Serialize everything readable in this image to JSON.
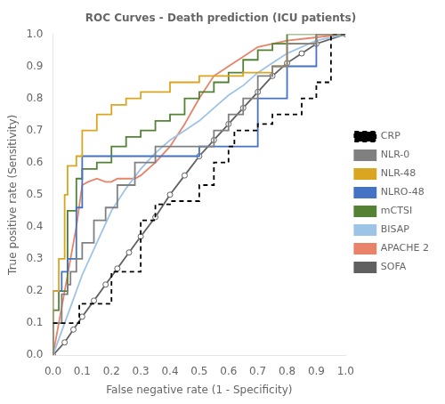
{
  "chart_data": {
    "type": "line",
    "title": "ROC Curves - Death prediction (ICU patients)",
    "xlabel": "False negative rate (1 - Specificity)",
    "ylabel": "True positive rate (Sensitivity)",
    "xlim": [
      0,
      1
    ],
    "ylim": [
      0,
      1
    ],
    "xticks": [
      {
        "value": 0,
        "label": "0.0"
      },
      0.1,
      0.2,
      0.3,
      0.4,
      0.5,
      0.6,
      0.7,
      0.8,
      0.9,
      {
        "value": 1.0,
        "label": "1.0"
      }
    ],
    "yticks": [
      {
        "value": 0,
        "label": "0.0"
      },
      0.1,
      0.2,
      0.3,
      0.4,
      0.5,
      0.6,
      0.7,
      0.8,
      0.9,
      {
        "value": 1.0,
        "label": "1.0"
      }
    ],
    "grid": false,
    "legend": "right",
    "series": [
      {
        "name": "CRP",
        "type": "step",
        "line_style": "dashed",
        "color": "#000000",
        "x": [
          0,
          0.03,
          0.06,
          0.09,
          0.1,
          0.2,
          0.22,
          0.3,
          0.35,
          0.4,
          0.45,
          0.5,
          0.53,
          0.55,
          0.6,
          0.62,
          0.65,
          0.7,
          0.75,
          0.8,
          0.85,
          0.9,
          0.95,
          1.0
        ],
        "values": [
          0.1,
          0.1,
          0.1,
          0.1,
          0.16,
          0.16,
          0.26,
          0.26,
          0.42,
          0.47,
          0.48,
          0.48,
          0.53,
          0.53,
          0.6,
          0.65,
          0.7,
          0.7,
          0.72,
          0.75,
          0.75,
          0.8,
          0.85,
          1.0
        ]
      },
      {
        "name": "NLR-0",
        "type": "step",
        "color": "#808080",
        "x": [
          0,
          0.03,
          0.05,
          0.06,
          0.08,
          0.1,
          0.14,
          0.18,
          0.22,
          0.28,
          0.35,
          0.4,
          0.48,
          0.55,
          0.6,
          0.65,
          0.7,
          0.75,
          0.8,
          0.9,
          1.0
        ],
        "values": [
          0,
          0.1,
          0.19,
          0.22,
          0.26,
          0.3,
          0.35,
          0.42,
          0.46,
          0.53,
          0.6,
          0.65,
          0.65,
          0.65,
          0.7,
          0.75,
          0.8,
          0.87,
          0.9,
          0.97,
          1.0
        ]
      },
      {
        "name": "NLR-48",
        "type": "step",
        "color": "#DAA520",
        "x": [
          0,
          0.02,
          0.04,
          0.05,
          0.08,
          0.1,
          0.15,
          0.2,
          0.25,
          0.3,
          0.4,
          0.5,
          0.6,
          0.65,
          0.7,
          0.75,
          0.8,
          0.9,
          1.0
        ],
        "values": [
          0,
          0.2,
          0.3,
          0.5,
          0.59,
          0.62,
          0.7,
          0.75,
          0.78,
          0.8,
          0.82,
          0.85,
          0.87,
          0.87,
          0.88,
          0.88,
          0.9,
          0.97,
          1.0
        ]
      },
      {
        "name": "NLRO-48",
        "type": "step",
        "color": "#4472C4",
        "x": [
          0,
          0.03,
          0.05,
          0.08,
          0.1,
          0.2,
          0.3,
          0.4,
          0.5,
          0.55,
          0.6,
          0.65,
          0.7,
          0.8,
          0.9,
          1.0
        ],
        "values": [
          0,
          0.2,
          0.26,
          0.3,
          0.46,
          0.62,
          0.62,
          0.62,
          0.62,
          0.65,
          0.65,
          0.65,
          0.65,
          0.8,
          0.9,
          1.0
        ]
      },
      {
        "name": "mCTSI",
        "type": "step",
        "color": "#548235",
        "x": [
          0,
          0.02,
          0.05,
          0.08,
          0.1,
          0.15,
          0.2,
          0.25,
          0.3,
          0.35,
          0.4,
          0.45,
          0.5,
          0.55,
          0.6,
          0.65,
          0.7,
          0.75,
          0.8,
          1.0
        ],
        "values": [
          0,
          0.14,
          0.2,
          0.45,
          0.55,
          0.58,
          0.6,
          0.65,
          0.68,
          0.7,
          0.73,
          0.75,
          0.8,
          0.82,
          0.85,
          0.88,
          0.92,
          0.95,
          0.97,
          1.0
        ]
      },
      {
        "name": "BISAP",
        "type": "line",
        "color": "#9DC3E6",
        "x": [
          0,
          0.02,
          0.04,
          0.06,
          0.08,
          0.1,
          0.15,
          0.2,
          0.25,
          0.3,
          0.35,
          0.4,
          0.45,
          0.5,
          0.55,
          0.6,
          0.65,
          0.7,
          0.75,
          0.8,
          0.85,
          0.9,
          0.95,
          1.0
        ],
        "values": [
          0,
          0.05,
          0.1,
          0.15,
          0.2,
          0.25,
          0.35,
          0.45,
          0.52,
          0.58,
          0.63,
          0.67,
          0.7,
          0.73,
          0.77,
          0.81,
          0.84,
          0.88,
          0.91,
          0.94,
          0.96,
          0.98,
          0.99,
          1.0
        ]
      },
      {
        "name": "APACHE 2",
        "type": "line",
        "color": "#E8836A",
        "x": [
          0,
          0.02,
          0.04,
          0.06,
          0.08,
          0.1,
          0.12,
          0.15,
          0.18,
          0.2,
          0.22,
          0.25,
          0.28,
          0.3,
          0.35,
          0.4,
          0.45,
          0.5,
          0.55,
          0.6,
          0.65,
          0.7,
          0.8,
          0.9,
          1.0
        ],
        "values": [
          0,
          0.1,
          0.2,
          0.3,
          0.4,
          0.53,
          0.54,
          0.55,
          0.54,
          0.54,
          0.55,
          0.55,
          0.55,
          0.56,
          0.6,
          0.65,
          0.72,
          0.8,
          0.87,
          0.9,
          0.93,
          0.96,
          0.98,
          0.99,
          1.0
        ]
      },
      {
        "name": "SOFA",
        "type": "line",
        "marker": "circle",
        "color": "#606060",
        "x": [
          0,
          0.04,
          0.07,
          0.1,
          0.14,
          0.18,
          0.22,
          0.26,
          0.3,
          0.35,
          0.4,
          0.45,
          0.5,
          0.55,
          0.6,
          0.65,
          0.7,
          0.75,
          0.8,
          0.85,
          0.9,
          1.0
        ],
        "values": [
          0,
          0.04,
          0.08,
          0.12,
          0.17,
          0.22,
          0.27,
          0.32,
          0.37,
          0.43,
          0.5,
          0.56,
          0.62,
          0.67,
          0.72,
          0.77,
          0.82,
          0.87,
          0.91,
          0.94,
          0.97,
          1.0
        ]
      }
    ]
  }
}
